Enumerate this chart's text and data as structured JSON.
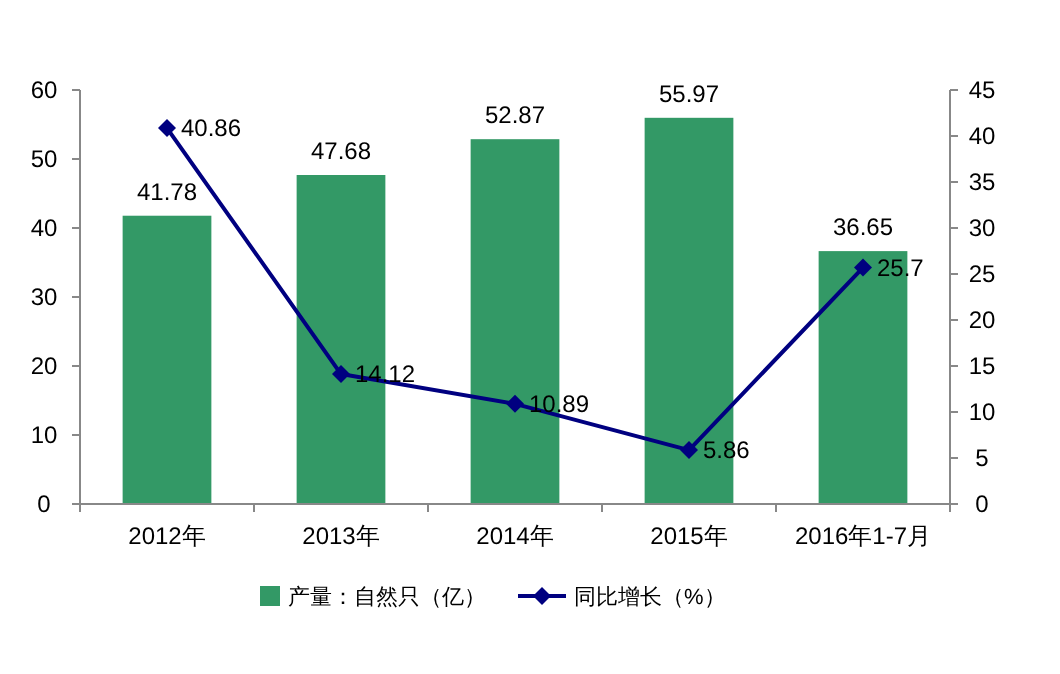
{
  "chart_data": {
    "type": "bar",
    "categories": [
      "2012年",
      "2013年",
      "2014年",
      "2015年",
      "2016年1-7月"
    ],
    "series": [
      {
        "name": "产量：自然只（亿）",
        "color": "#339966",
        "values": [
          41.78,
          47.68,
          52.87,
          55.97,
          36.65
        ]
      },
      {
        "name": "同比增长（%）",
        "type": "line",
        "axis": "y2",
        "color": "#000080",
        "values": [
          40.86,
          14.12,
          10.89,
          5.86,
          25.7
        ]
      }
    ],
    "ylim": [
      0,
      60
    ],
    "yticks": [
      0,
      10,
      20,
      30,
      40,
      50,
      60
    ],
    "y2lim": [
      0,
      45
    ],
    "y2ticks": [
      0,
      5,
      10,
      15,
      20,
      25,
      30,
      35,
      40,
      45
    ],
    "marker": "diamond",
    "line_style": "solid",
    "data_labels": true,
    "legend": "bottom",
    "grid": false
  }
}
